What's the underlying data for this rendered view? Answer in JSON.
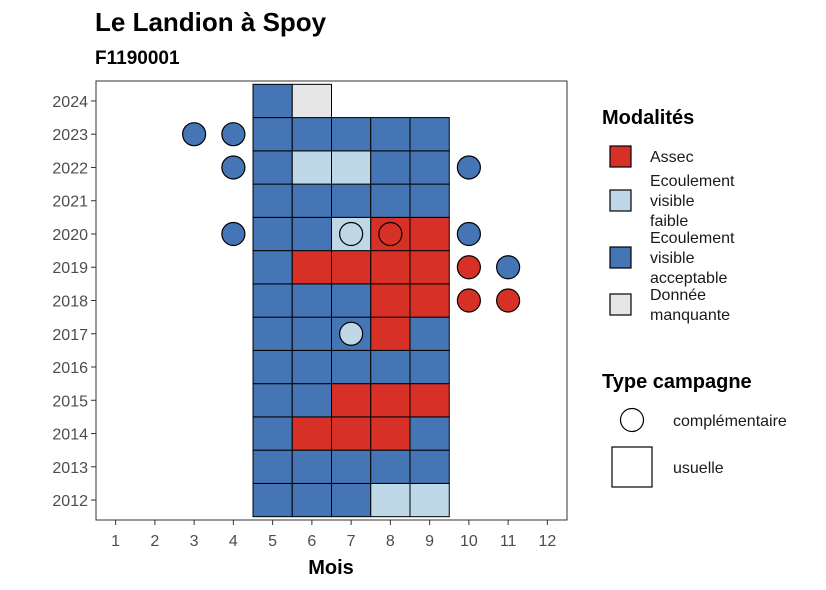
{
  "chart_data": {
    "type": "heatmap",
    "title": "Le Landion à Spoy",
    "subtitle": "F1190001",
    "xlabel": "Mois",
    "ylabel": "",
    "x_ticks": [
      1,
      2,
      3,
      4,
      5,
      6,
      7,
      8,
      9,
      10,
      11,
      12
    ],
    "y_ticks": [
      2012,
      2013,
      2014,
      2015,
      2016,
      2017,
      2018,
      2019,
      2020,
      2021,
      2022,
      2023,
      2024
    ],
    "xlim": [
      0.5,
      12.5
    ],
    "ylim": [
      2011.4,
      2024.6
    ],
    "modalites": [
      {
        "key": "assec",
        "label_lines": [
          "Assec"
        ],
        "color": "#d73027"
      },
      {
        "key": "faible",
        "label_lines": [
          "Ecoulement",
          "visible",
          "faible"
        ],
        "color": "#bfd8e7"
      },
      {
        "key": "acceptable",
        "label_lines": [
          "Ecoulement",
          "visible",
          "acceptable"
        ],
        "color": "#4575b4"
      },
      {
        "key": "manquante",
        "label_lines": [
          "Donnée",
          "manquante"
        ],
        "color": "#e6e6e6"
      }
    ],
    "campagne_legend_title": "Type campagne",
    "campagne_types": [
      {
        "key": "complementaire",
        "label": "complémentaire",
        "shape": "circle"
      },
      {
        "key": "usuelle",
        "label": "usuelle",
        "shape": "square"
      }
    ],
    "legend_title": "Modalités",
    "legend_position": "right",
    "usuelle": [
      {
        "year": 2012,
        "months": [
          "acceptable",
          "acceptable",
          "acceptable",
          "faible",
          "faible"
        ]
      },
      {
        "year": 2013,
        "months": [
          "acceptable",
          "acceptable",
          "acceptable",
          "acceptable",
          "acceptable"
        ]
      },
      {
        "year": 2014,
        "months": [
          "acceptable",
          "assec",
          "assec",
          "assec",
          "acceptable"
        ]
      },
      {
        "year": 2015,
        "months": [
          "acceptable",
          "acceptable",
          "assec",
          "assec",
          "assec"
        ]
      },
      {
        "year": 2016,
        "months": [
          "acceptable",
          "acceptable",
          "acceptable",
          "acceptable",
          "acceptable"
        ]
      },
      {
        "year": 2017,
        "months": [
          "acceptable",
          "acceptable",
          "acceptable",
          "assec",
          "acceptable"
        ]
      },
      {
        "year": 2018,
        "months": [
          "acceptable",
          "acceptable",
          "acceptable",
          "assec",
          "assec"
        ]
      },
      {
        "year": 2019,
        "months": [
          "acceptable",
          "assec",
          "assec",
          "assec",
          "assec"
        ]
      },
      {
        "year": 2020,
        "months": [
          "acceptable",
          "acceptable",
          "faible",
          "assec",
          "assec"
        ]
      },
      {
        "year": 2021,
        "months": [
          "acceptable",
          "acceptable",
          "acceptable",
          "acceptable",
          "acceptable"
        ]
      },
      {
        "year": 2022,
        "months": [
          "acceptable",
          "faible",
          "faible",
          "acceptable",
          "acceptable"
        ]
      },
      {
        "year": 2023,
        "months": [
          "acceptable",
          "acceptable",
          "acceptable",
          "acceptable",
          "acceptable"
        ]
      },
      {
        "year": 2024,
        "months": [
          "acceptable",
          "manquante"
        ]
      }
    ],
    "usuelle_start_month": 5,
    "complementaire": [
      {
        "year": 2023,
        "month": 3,
        "value": "acceptable"
      },
      {
        "year": 2023,
        "month": 4,
        "value": "acceptable"
      },
      {
        "year": 2022,
        "month": 4,
        "value": "acceptable"
      },
      {
        "year": 2022,
        "month": 10,
        "value": "acceptable"
      },
      {
        "year": 2020,
        "month": 4,
        "value": "acceptable"
      },
      {
        "year": 2020,
        "month": 7,
        "value": "faible"
      },
      {
        "year": 2020,
        "month": 8,
        "value": "assec"
      },
      {
        "year": 2020,
        "month": 10,
        "value": "acceptable"
      },
      {
        "year": 2019,
        "month": 10,
        "value": "assec"
      },
      {
        "year": 2019,
        "month": 11,
        "value": "acceptable"
      },
      {
        "year": 2018,
        "month": 10,
        "value": "assec"
      },
      {
        "year": 2018,
        "month": 11,
        "value": "assec"
      },
      {
        "year": 2017,
        "month": 7,
        "value": "faible"
      }
    ]
  }
}
